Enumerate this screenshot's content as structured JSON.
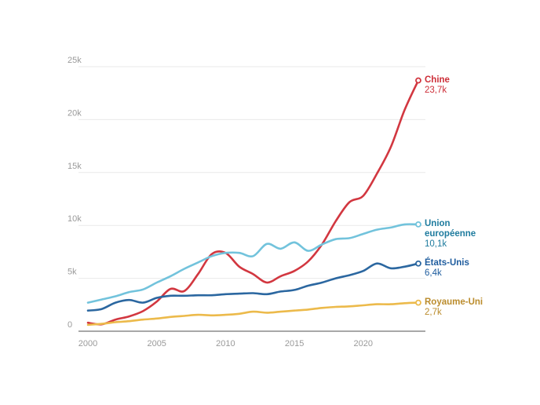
{
  "chart_data": {
    "type": "line",
    "unit": "thousands (k)",
    "grid": "horizontal-only",
    "legend_position": "right-of-line-ends",
    "x": [
      2000,
      2001,
      2002,
      2003,
      2004,
      2005,
      2006,
      2007,
      2008,
      2009,
      2010,
      2011,
      2012,
      2013,
      2014,
      2015,
      2016,
      2017,
      2018,
      2019,
      2020,
      2021,
      2022,
      2023,
      2024
    ],
    "x_tick_years": [
      2000,
      2005,
      2010,
      2015,
      2020
    ],
    "x_tick_labels": [
      "2000",
      "2005",
      "2010",
      "2015",
      "2020"
    ],
    "y_tick_values": [
      0,
      5,
      10,
      15,
      20,
      25
    ],
    "y_tick_labels": [
      "0",
      "5k",
      "10k",
      "15k",
      "20k",
      "25k"
    ],
    "ylim_k": [
      0,
      25
    ],
    "axis_text_color": "#9a9a9a",
    "gridline_color": "#e9e9e9",
    "axis_line_color": "#a8a8a8",
    "series": [
      {
        "key": "chine",
        "name": "Chine",
        "value_label": "23,7k",
        "end_value_k": 23.7,
        "line_color": "#d23740",
        "label_color": "#cd2e38",
        "values_k": [
          0.8,
          0.65,
          1.1,
          1.4,
          1.9,
          2.8,
          4.0,
          3.8,
          5.4,
          7.3,
          7.4,
          6.1,
          5.4,
          4.6,
          5.2,
          5.7,
          6.6,
          8.2,
          10.4,
          12.2,
          12.8,
          14.9,
          17.4,
          20.9,
          23.7
        ]
      },
      {
        "key": "union-europeenne",
        "name": "Union européenne",
        "value_label": "10,1k",
        "end_value_k": 10.1,
        "line_color": "#72c3dc",
        "label_color": "#1e7b9e",
        "values_k": [
          2.7,
          3.0,
          3.3,
          3.7,
          3.95,
          4.6,
          5.2,
          5.9,
          6.5,
          7.1,
          7.4,
          7.4,
          7.1,
          8.25,
          7.8,
          8.4,
          7.6,
          8.2,
          8.7,
          8.8,
          9.2,
          9.6,
          9.8,
          10.1,
          10.1
        ]
      },
      {
        "key": "etats-unis",
        "name": "États-Unis",
        "value_label": "6,4k",
        "end_value_k": 6.4,
        "line_color": "#2b67a0",
        "label_color": "#1e5c9e",
        "values_k": [
          1.95,
          2.1,
          2.7,
          2.95,
          2.7,
          3.15,
          3.35,
          3.35,
          3.4,
          3.4,
          3.5,
          3.55,
          3.6,
          3.5,
          3.75,
          3.9,
          4.3,
          4.6,
          5.0,
          5.3,
          5.7,
          6.4,
          5.95,
          6.1,
          6.4
        ]
      },
      {
        "key": "royaume-uni",
        "name": "Royaume-Uni",
        "value_label": "2,7k",
        "end_value_k": 2.7,
        "line_color": "#ecba4b",
        "label_color": "#bb8c2c",
        "values_k": [
          0.6,
          0.7,
          0.85,
          0.95,
          1.1,
          1.2,
          1.35,
          1.45,
          1.55,
          1.5,
          1.55,
          1.65,
          1.85,
          1.75,
          1.85,
          1.95,
          2.05,
          2.2,
          2.3,
          2.35,
          2.45,
          2.55,
          2.55,
          2.65,
          2.7
        ]
      }
    ]
  }
}
